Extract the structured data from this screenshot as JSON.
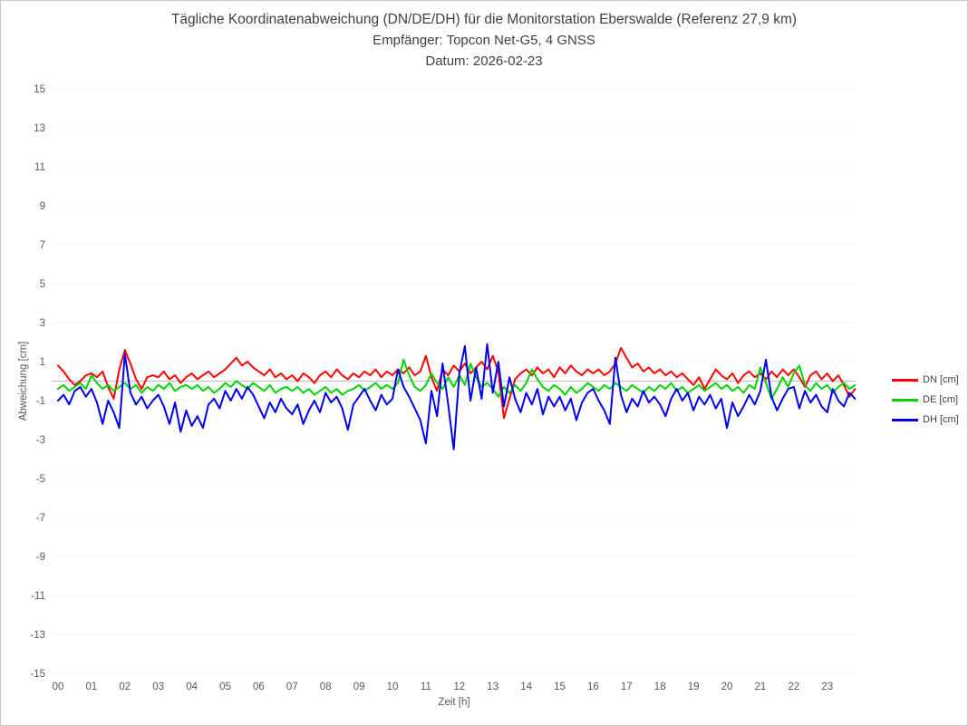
{
  "window": {
    "background": "#ffffff",
    "frame_border": "#c9c9c9"
  },
  "colors": {
    "title_text": "#3f3f3f",
    "tick_text": "#595959",
    "grid_dotted": "#d9d9d9",
    "zero_line": "#bfbfbf"
  },
  "chart_data": {
    "type": "line",
    "title": "Tägliche Koordinatenabweichung (DN/DE/DH) für die Monitorstation Eberswalde (Referenz 27,9 km)",
    "subtitle": "Empfänger: Topcon Net-G5, 4 GNSS",
    "date_line": "Datum: 2026-02-23",
    "xlabel": "Zeit [h]",
    "ylabel": "Abweichung [cm]",
    "ylim": [
      -15,
      15
    ],
    "yticks": [
      15,
      13,
      11,
      9,
      7,
      5,
      3,
      1,
      -1,
      -3,
      -5,
      -7,
      -9,
      -11,
      -13,
      -15
    ],
    "xticks": [
      "00",
      "01",
      "02",
      "03",
      "04",
      "05",
      "06",
      "07",
      "08",
      "09",
      "10",
      "11",
      "12",
      "13",
      "14",
      "15",
      "16",
      "17",
      "18",
      "19",
      "20",
      "21",
      "22",
      "23"
    ],
    "grid": "horizontal dotted lines at odd values, solid light line at 0",
    "legend_position": "right-middle",
    "sample_interval_minutes": 10,
    "series": [
      {
        "name": "DN [cm]",
        "color": "#ff0000",
        "values": [
          0.8,
          0.5,
          0.1,
          -0.2,
          0.0,
          0.3,
          0.4,
          0.2,
          0.5,
          -0.3,
          -0.9,
          0.6,
          1.6,
          0.9,
          0.1,
          -0.4,
          0.2,
          0.3,
          0.2,
          0.5,
          0.1,
          0.3,
          -0.1,
          0.2,
          0.4,
          0.1,
          0.3,
          0.5,
          0.2,
          0.4,
          0.6,
          0.9,
          1.2,
          0.8,
          1.0,
          0.7,
          0.5,
          0.3,
          0.6,
          0.2,
          0.4,
          0.1,
          0.3,
          0.0,
          0.4,
          0.2,
          -0.1,
          0.3,
          0.5,
          0.2,
          0.6,
          0.3,
          0.1,
          0.4,
          0.2,
          0.5,
          0.3,
          0.6,
          0.2,
          0.5,
          0.3,
          0.6,
          0.4,
          0.7,
          0.3,
          0.5,
          1.3,
          0.2,
          -0.5,
          0.6,
          0.3,
          0.8,
          0.5,
          0.9,
          0.4,
          0.7,
          1.0,
          0.6,
          1.3,
          0.5,
          -1.9,
          -0.9,
          0.1,
          0.4,
          0.6,
          0.3,
          0.7,
          0.4,
          0.6,
          0.2,
          0.7,
          0.4,
          0.8,
          0.5,
          0.3,
          0.6,
          0.4,
          0.6,
          0.3,
          0.5,
          0.9,
          1.7,
          1.2,
          0.7,
          0.9,
          0.5,
          0.7,
          0.4,
          0.6,
          0.3,
          0.5,
          0.2,
          0.4,
          0.1,
          -0.2,
          0.2,
          -0.4,
          0.1,
          0.6,
          0.3,
          0.1,
          0.4,
          -0.1,
          0.3,
          0.5,
          0.2,
          0.4,
          0.1,
          0.5,
          0.2,
          0.6,
          0.3,
          0.6,
          0.2,
          -0.3,
          0.3,
          0.5,
          0.1,
          0.4,
          0.0,
          0.3,
          -0.2,
          -0.8,
          -0.4
        ]
      },
      {
        "name": "DE [cm]",
        "color": "#00d400",
        "values": [
          -0.4,
          -0.2,
          -0.5,
          -0.3,
          -0.1,
          -0.4,
          0.3,
          -0.1,
          -0.4,
          -0.2,
          -0.5,
          -0.3,
          -0.1,
          -0.4,
          -0.2,
          -0.6,
          -0.3,
          -0.5,
          -0.2,
          -0.4,
          -0.1,
          -0.5,
          -0.3,
          -0.2,
          -0.4,
          -0.2,
          -0.5,
          -0.3,
          -0.6,
          -0.4,
          -0.1,
          -0.3,
          0.0,
          -0.2,
          -0.4,
          -0.1,
          -0.3,
          -0.5,
          -0.2,
          -0.6,
          -0.4,
          -0.3,
          -0.5,
          -0.3,
          -0.6,
          -0.4,
          -0.7,
          -0.5,
          -0.3,
          -0.6,
          -0.4,
          -0.7,
          -0.5,
          -0.4,
          -0.2,
          -0.5,
          -0.3,
          -0.1,
          -0.4,
          -0.2,
          -0.4,
          -0.1,
          1.1,
          0.3,
          -0.3,
          -0.5,
          -0.2,
          0.4,
          -0.1,
          -0.4,
          0.2,
          -0.3,
          0.3,
          -0.2,
          0.9,
          0.2,
          -0.3,
          -0.1,
          -0.4,
          -0.8,
          -0.3,
          -0.6,
          -0.2,
          -0.5,
          -0.1,
          0.6,
          0.1,
          -0.3,
          -0.5,
          -0.2,
          -0.4,
          -0.7,
          -0.3,
          -0.6,
          -0.4,
          -0.1,
          -0.3,
          -0.5,
          -0.2,
          -0.4,
          -0.1,
          -0.3,
          -0.5,
          -0.2,
          -0.4,
          -0.6,
          -0.3,
          -0.5,
          -0.2,
          -0.4,
          -0.1,
          -0.5,
          -0.3,
          -0.6,
          -0.4,
          -0.2,
          -0.5,
          -0.3,
          -0.1,
          -0.4,
          -0.2,
          -0.5,
          -0.3,
          -0.6,
          -0.2,
          -0.4,
          0.7,
          -0.1,
          -0.9,
          -0.4,
          0.2,
          -0.3,
          0.4,
          0.8,
          -0.2,
          -0.5,
          -0.1,
          -0.4,
          -0.2,
          -0.6,
          -0.3,
          -0.1,
          -0.4,
          -0.2
        ]
      },
      {
        "name": "DH [cm]",
        "color": "#0000ee",
        "values": [
          -1.0,
          -0.7,
          -1.2,
          -0.5,
          -0.3,
          -0.8,
          -0.4,
          -1.1,
          -2.2,
          -1.0,
          -1.6,
          -2.4,
          1.4,
          -0.6,
          -1.2,
          -0.8,
          -1.4,
          -1.0,
          -0.7,
          -1.3,
          -2.2,
          -1.1,
          -2.6,
          -1.5,
          -2.3,
          -1.8,
          -2.4,
          -1.2,
          -0.9,
          -1.4,
          -0.5,
          -1.0,
          -0.4,
          -0.9,
          -0.3,
          -0.7,
          -1.3,
          -1.9,
          -1.1,
          -1.6,
          -0.9,
          -1.4,
          -1.7,
          -1.2,
          -2.2,
          -1.5,
          -1.0,
          -1.6,
          -0.6,
          -1.1,
          -0.8,
          -1.4,
          -2.5,
          -1.2,
          -0.8,
          -0.4,
          -1.0,
          -1.5,
          -0.7,
          -1.2,
          -0.9,
          0.6,
          -0.3,
          -0.8,
          -1.4,
          -2.0,
          -3.2,
          -0.5,
          -1.8,
          0.9,
          -1.2,
          -3.5,
          0.4,
          1.8,
          -1.0,
          0.7,
          -0.9,
          1.9,
          -0.6,
          1.0,
          -1.3,
          0.2,
          -0.9,
          -1.6,
          -0.6,
          -1.2,
          -0.4,
          -1.7,
          -0.8,
          -1.3,
          -0.8,
          -1.5,
          -0.9,
          -2.0,
          -1.1,
          -0.6,
          -0.4,
          -1.0,
          -1.5,
          -2.2,
          1.2,
          -0.7,
          -1.6,
          -0.9,
          -1.3,
          -0.5,
          -1.1,
          -0.8,
          -1.2,
          -1.8,
          -0.9,
          -0.4,
          -1.0,
          -0.6,
          -1.5,
          -0.8,
          -1.2,
          -0.7,
          -1.4,
          -0.9,
          -2.4,
          -1.1,
          -1.8,
          -1.3,
          -0.7,
          -1.2,
          -0.5,
          1.1,
          -0.8,
          -1.5,
          -0.9,
          -0.4,
          -0.3,
          -1.4,
          -0.5,
          -1.1,
          -0.7,
          -1.3,
          -1.6,
          -0.4,
          -1.0,
          -1.3,
          -0.6,
          -0.9
        ]
      }
    ]
  }
}
